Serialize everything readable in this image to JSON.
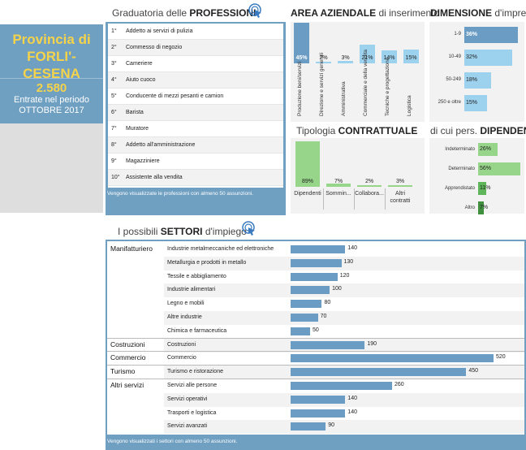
{
  "left": {
    "province_line1": "Provincia di",
    "province_line2": "FORLI'-CESENA",
    "count": "2.580",
    "entries_label": "Entrate nel periodo",
    "period": "OTTOBRE 2017"
  },
  "professions": {
    "title_prefix": "Graduatoria delle ",
    "title_bold": "PROFESSIONI",
    "items": [
      {
        "rank": "1°",
        "label": "Addetto ai servizi di pulizia"
      },
      {
        "rank": "2°",
        "label": "Commesso di negozio"
      },
      {
        "rank": "3°",
        "label": "Cameriere"
      },
      {
        "rank": "4°",
        "label": "Aiuto cuoco"
      },
      {
        "rank": "5°",
        "label": "Conducente di mezzi pesanti e camion"
      },
      {
        "rank": "6°",
        "label": "Barista"
      },
      {
        "rank": "7°",
        "label": "Muratore"
      },
      {
        "rank": "8°",
        "label": "Addetto all'amministrazione"
      },
      {
        "rank": "9°",
        "label": "Magazziniere"
      },
      {
        "rank": "10°",
        "label": "Assistente alla vendita"
      }
    ],
    "note": "Vengono visualizzate le professioni con almeno 50 assunzioni."
  },
  "area": {
    "title_bold": "AREA AZIENDALE",
    "title_rest": " di inserimento"
  },
  "dimension": {
    "title_bold": "DIMENSIONE",
    "title_rest": " d'impresa"
  },
  "tipologia": {
    "title_prefix": "Tipologia ",
    "title_bold": "CONTRATTUALE"
  },
  "dipendente": {
    "title_prefix": "di cui pers. ",
    "title_bold": "DIPENDENTE"
  },
  "sectors": {
    "title_prefix": "I possibili ",
    "title_bold": "SETTORI",
    "title_rest": " d'impiego",
    "note": "Vengono visualizzati i settori con almeno 50 assunzioni."
  },
  "chart_data": [
    {
      "type": "bar",
      "title": "AREA AZIENDALE di inserimento",
      "categories": [
        "Produzione beni/servizi",
        "Direzione e servizi generali",
        "Amministrativa",
        "Commerciale e della vendita",
        "Tecniche e progettazione",
        "Logistica"
      ],
      "values": [
        45,
        2,
        3,
        21,
        14,
        15
      ],
      "labels": [
        "45%",
        "2%",
        "3%",
        "21%",
        "14%",
        "15%"
      ]
    },
    {
      "type": "bar",
      "title": "DIMENSIONE d'impresa",
      "categories": [
        "1-9",
        "10-49",
        "50-249",
        "250 e oltre"
      ],
      "values": [
        36,
        32,
        18,
        15
      ],
      "labels": [
        "36%",
        "32%",
        "18%",
        "15%"
      ]
    },
    {
      "type": "bar",
      "title": "Tipologia CONTRATTUALE",
      "categories": [
        "Dipendenti",
        "Sommin...",
        "Collabora...",
        "Altri contratti"
      ],
      "values": [
        89,
        7,
        2,
        3
      ],
      "labels": [
        "89%",
        "7%",
        "2%",
        "3%"
      ]
    },
    {
      "type": "bar",
      "title": "di cui pers. DIPENDENTE",
      "categories": [
        "Indeterminato",
        "Determinato",
        "Apprendistato",
        "Altro"
      ],
      "values": [
        26,
        56,
        11,
        7
      ],
      "labels": [
        "26%",
        "56%",
        "11%",
        "7%"
      ]
    },
    {
      "type": "bar",
      "title": "I possibili SETTORI d'impiego",
      "groups": [
        "Manifatturiero",
        "Costruzioni",
        "Commercio",
        "Turismo",
        "Altri servizi"
      ],
      "rows": [
        {
          "group": "Manifatturiero",
          "label": "Industrie metalmeccaniche ed elettroniche",
          "value": 140
        },
        {
          "group": "",
          "label": "Metallurgia e prodotti in metallo",
          "value": 130
        },
        {
          "group": "",
          "label": "Tessile e abbigliamento",
          "value": 120
        },
        {
          "group": "",
          "label": "Industrie alimentari",
          "value": 100
        },
        {
          "group": "",
          "label": "Legno e mobili",
          "value": 80
        },
        {
          "group": "",
          "label": "Altre industrie",
          "value": 70
        },
        {
          "group": "",
          "label": "Chimica e farmaceutica",
          "value": 50
        },
        {
          "group": "Costruzioni",
          "label": "Costruzioni",
          "value": 190
        },
        {
          "group": "Commercio",
          "label": "Commercio",
          "value": 520
        },
        {
          "group": "Turismo",
          "label": "Turismo e ristorazione",
          "value": 450
        },
        {
          "group": "Altri servizi",
          "label": "Servizi alle persone",
          "value": 260
        },
        {
          "group": "",
          "label": "Servizi operativi",
          "value": 140
        },
        {
          "group": "",
          "label": "Trasporti e logistica",
          "value": 140
        },
        {
          "group": "",
          "label": "Servizi avanzati",
          "value": 90
        }
      ]
    }
  ]
}
